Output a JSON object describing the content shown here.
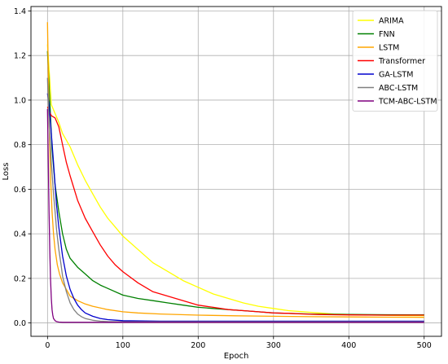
{
  "chart_data": {
    "type": "line",
    "title": "",
    "xlabel": "Epoch",
    "ylabel": "Loss",
    "xlim": [
      -22,
      523
    ],
    "ylim": [
      -0.06,
      1.42
    ],
    "xticks": [
      0,
      100,
      200,
      300,
      400,
      500
    ],
    "yticks": [
      0.0,
      0.2,
      0.4,
      0.6,
      0.8,
      1.0,
      1.2,
      1.4
    ],
    "xtick_labels": [
      "0",
      "100",
      "200",
      "300",
      "400",
      "500"
    ],
    "ytick_labels": [
      "0.0",
      "0.2",
      "0.4",
      "0.6",
      "0.8",
      "1.0",
      "1.2",
      "1.4"
    ],
    "grid": true,
    "legend_position": "top-right",
    "series": [
      {
        "name": "ARIMA",
        "color": "#ffff00",
        "x": [
          0,
          5,
          10,
          15,
          20,
          25,
          30,
          40,
          50,
          60,
          70,
          80,
          90,
          100,
          120,
          140,
          160,
          180,
          200,
          220,
          240,
          260,
          280,
          300,
          320,
          340,
          360,
          380,
          400,
          420,
          440,
          460,
          480,
          500
        ],
        "y": [
          1.25,
          0.98,
          0.94,
          0.9,
          0.85,
          0.82,
          0.79,
          0.71,
          0.64,
          0.58,
          0.52,
          0.47,
          0.43,
          0.39,
          0.33,
          0.27,
          0.23,
          0.19,
          0.16,
          0.13,
          0.11,
          0.09,
          0.075,
          0.065,
          0.055,
          0.05,
          0.045,
          0.04,
          0.038,
          0.036,
          0.035,
          0.034,
          0.033,
          0.033
        ]
      },
      {
        "name": "FNN",
        "color": "#008000",
        "x": [
          0,
          3,
          6,
          10,
          15,
          20,
          25,
          30,
          40,
          50,
          60,
          70,
          80,
          100,
          120,
          140,
          160,
          180,
          200,
          220,
          240,
          260,
          280,
          300,
          350,
          400,
          450,
          500
        ],
        "y": [
          1.22,
          1.0,
          0.78,
          0.62,
          0.5,
          0.4,
          0.33,
          0.29,
          0.25,
          0.22,
          0.19,
          0.17,
          0.155,
          0.125,
          0.11,
          0.1,
          0.09,
          0.08,
          0.07,
          0.065,
          0.06,
          0.055,
          0.05,
          0.045,
          0.04,
          0.038,
          0.037,
          0.036
        ]
      },
      {
        "name": "LSTM",
        "color": "#ffa500",
        "x": [
          0,
          2,
          4,
          6,
          8,
          10,
          13,
          16,
          20,
          25,
          30,
          40,
          50,
          60,
          80,
          100,
          120,
          150,
          200,
          250,
          300,
          350,
          400,
          450,
          500
        ],
        "y": [
          1.35,
          0.92,
          0.66,
          0.5,
          0.4,
          0.33,
          0.26,
          0.22,
          0.18,
          0.15,
          0.12,
          0.1,
          0.085,
          0.075,
          0.06,
          0.05,
          0.045,
          0.04,
          0.035,
          0.032,
          0.03,
          0.028,
          0.027,
          0.026,
          0.025
        ]
      },
      {
        "name": "Transformer",
        "color": "#ff0000",
        "x": [
          0,
          5,
          10,
          15,
          20,
          25,
          30,
          40,
          50,
          60,
          70,
          80,
          90,
          100,
          120,
          140,
          160,
          180,
          200,
          220,
          240,
          260,
          280,
          300,
          320,
          340,
          360,
          380,
          400,
          450,
          500
        ],
        "y": [
          0.97,
          0.93,
          0.92,
          0.88,
          0.8,
          0.72,
          0.66,
          0.55,
          0.47,
          0.41,
          0.35,
          0.3,
          0.26,
          0.23,
          0.18,
          0.14,
          0.12,
          0.1,
          0.08,
          0.07,
          0.06,
          0.055,
          0.05,
          0.045,
          0.043,
          0.04,
          0.038,
          0.037,
          0.036,
          0.035,
          0.035
        ]
      },
      {
        "name": "GA-LSTM",
        "color": "#0000cd",
        "x": [
          0,
          2,
          5,
          8,
          10,
          12,
          15,
          20,
          25,
          30,
          35,
          40,
          45,
          50,
          60,
          70,
          80,
          100,
          150,
          200,
          300,
          400,
          500
        ],
        "y": [
          1.03,
          0.98,
          0.85,
          0.72,
          0.62,
          0.53,
          0.43,
          0.3,
          0.21,
          0.15,
          0.11,
          0.08,
          0.06,
          0.045,
          0.03,
          0.02,
          0.015,
          0.01,
          0.008,
          0.008,
          0.008,
          0.008,
          0.008
        ]
      },
      {
        "name": "ABC-LSTM",
        "color": "#808080",
        "x": [
          0,
          2,
          5,
          8,
          10,
          12,
          15,
          18,
          20,
          25,
          30,
          35,
          40,
          45,
          50,
          60,
          70,
          80,
          100,
          150,
          200,
          300,
          400,
          500
        ],
        "y": [
          1.1,
          0.9,
          0.72,
          0.58,
          0.5,
          0.42,
          0.33,
          0.26,
          0.21,
          0.14,
          0.09,
          0.06,
          0.04,
          0.028,
          0.02,
          0.012,
          0.008,
          0.006,
          0.005,
          0.005,
          0.005,
          0.005,
          0.005,
          0.005
        ]
      },
      {
        "name": "TCM-ABC-LSTM",
        "color": "#800080",
        "x": [
          0,
          1,
          2,
          3,
          4,
          5,
          6,
          7,
          8,
          10,
          12,
          15,
          20,
          30,
          50,
          100,
          200,
          300,
          400,
          500
        ],
        "y": [
          0.96,
          0.72,
          0.5,
          0.33,
          0.2,
          0.11,
          0.06,
          0.035,
          0.02,
          0.01,
          0.006,
          0.004,
          0.003,
          0.003,
          0.003,
          0.003,
          0.003,
          0.003,
          0.003,
          0.003
        ]
      }
    ]
  }
}
